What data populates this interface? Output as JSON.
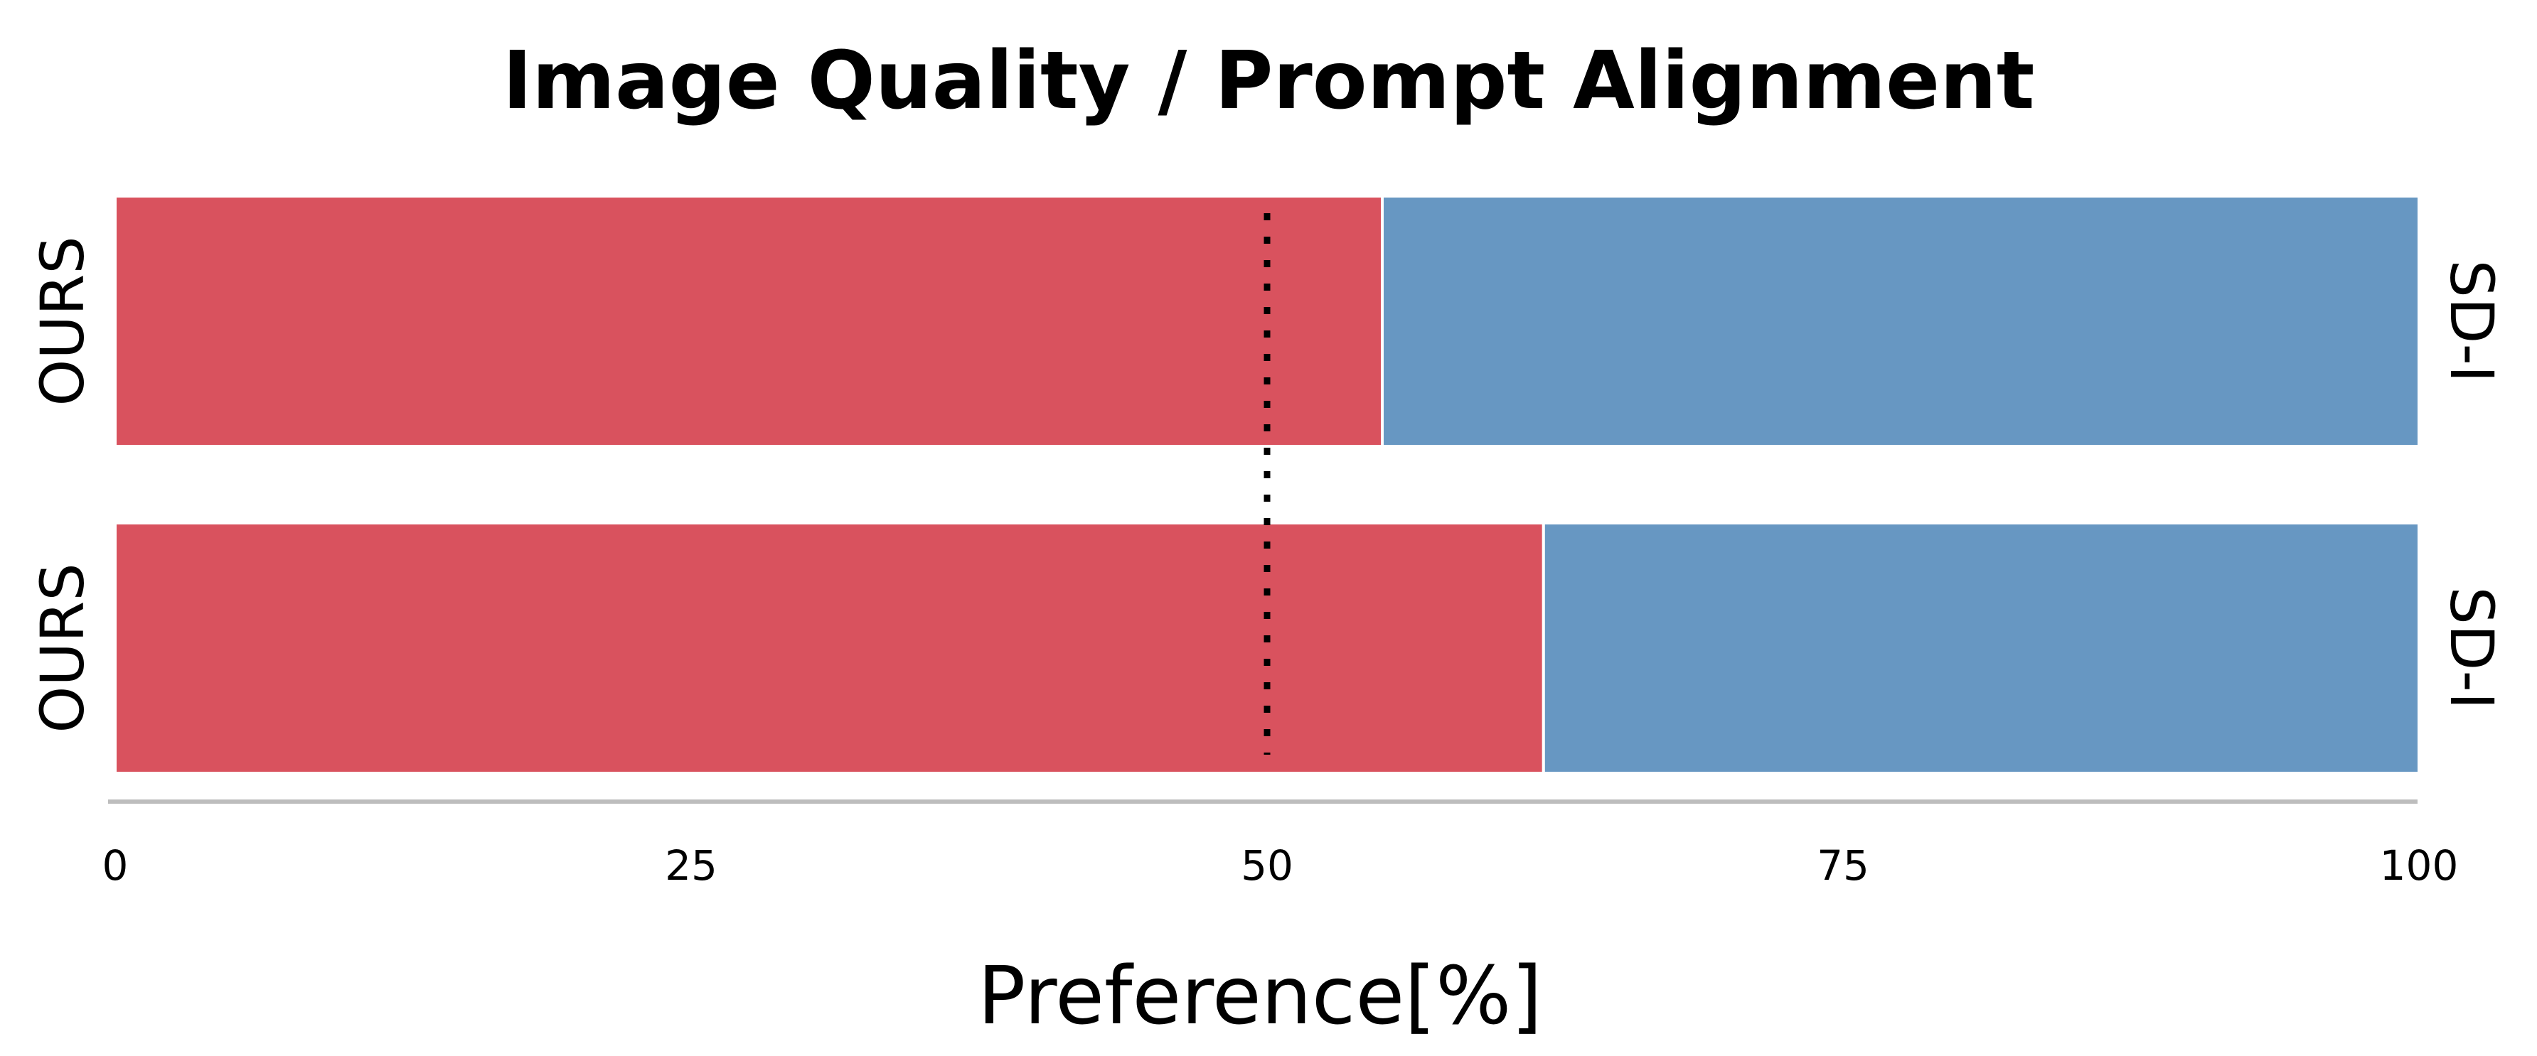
{
  "chart_data": {
    "type": "bar",
    "orientation": "horizontal",
    "stacked": true,
    "title": "Image Quality / Prompt Alignment",
    "xlabel": "Preference[%]",
    "ylabel": "",
    "xlim": [
      0,
      100
    ],
    "x_ticks": [
      "0",
      "25",
      "50",
      "75",
      "100"
    ],
    "reference_line": {
      "value": 50,
      "style": "dotted"
    },
    "grid": false,
    "legend": "none",
    "categories": [
      "Image Quality",
      "Prompt Alignment"
    ],
    "rows": [
      {
        "left_label": "OURS",
        "right_label": "SD-I"
      },
      {
        "left_label": "OURS",
        "right_label": "SD-I"
      }
    ],
    "series": [
      {
        "values": [
          55,
          62
        ],
        "color": "#d9525e"
      },
      {
        "values": [
          45,
          38
        ],
        "color": "#6797c2"
      }
    ]
  }
}
